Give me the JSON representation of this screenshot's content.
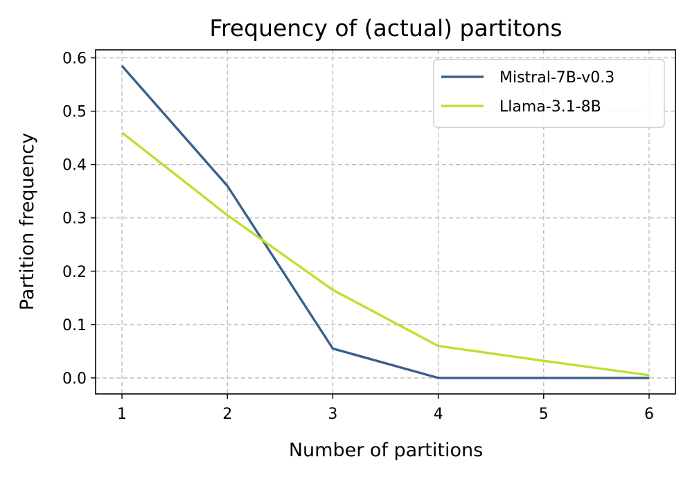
{
  "chart_data": {
    "type": "line",
    "title": "Frequency of (actual) partitons",
    "xlabel": "Number of partitions",
    "ylabel": "Partition frequency",
    "x": [
      1,
      2,
      3,
      4,
      5,
      6
    ],
    "xlim": [
      0.75,
      6.25
    ],
    "ylim": [
      -0.03,
      0.615
    ],
    "xticks": [
      "1",
      "2",
      "3",
      "4",
      "5",
      "6"
    ],
    "yticks": [
      "0.0",
      "0.1",
      "0.2",
      "0.3",
      "0.4",
      "0.5",
      "0.6"
    ],
    "grid": true,
    "legend_position": "top-right",
    "series": [
      {
        "name": "Mistral-7B-v0.3",
        "color": "#3a5f8a",
        "values": [
          0.585,
          0.36,
          0.055,
          0.0,
          0.0,
          0.0
        ]
      },
      {
        "name": "Llama-3.1-8B",
        "color": "#bde02e",
        "values": [
          0.46,
          0.305,
          0.165,
          0.06,
          0.032,
          0.005
        ]
      }
    ]
  }
}
